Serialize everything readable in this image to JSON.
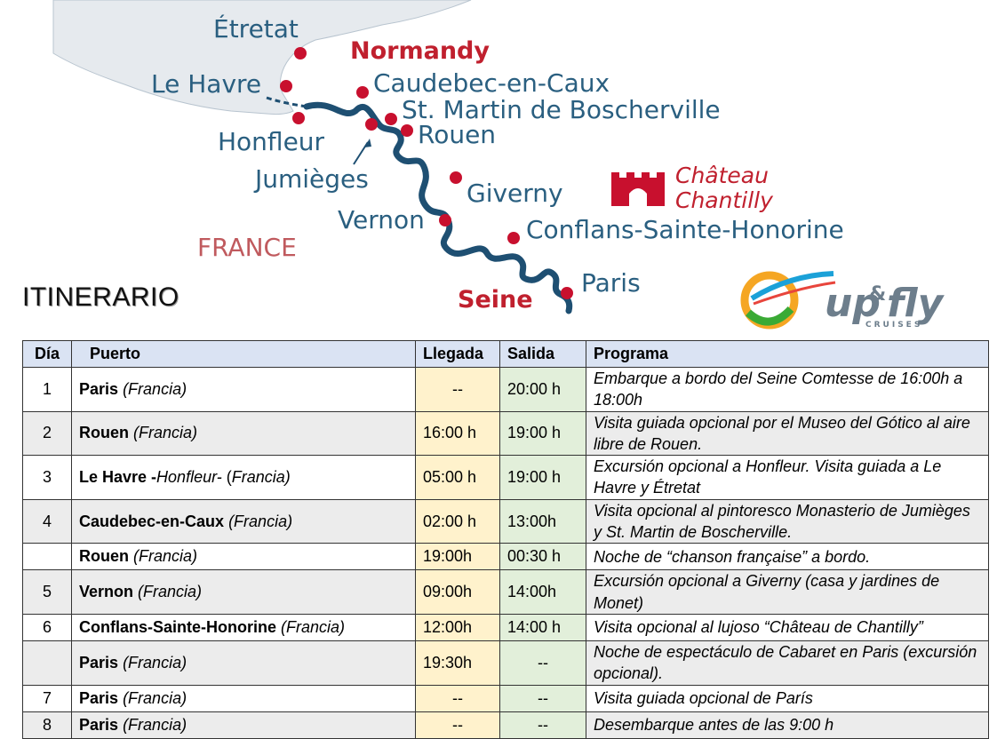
{
  "map": {
    "places": {
      "etretat": "Étretat",
      "le_havre": "Le Havre",
      "honfleur": "Honfleur",
      "caudebec": "Caudebec-en-Caux",
      "st_martin": "St. Martin de Boscherville",
      "rouen": "Rouen",
      "jumieges": "Jumièges",
      "giverny": "Giverny",
      "vernon": "Vernon",
      "conflans": "Conflans-Sainte-Honorine",
      "paris": "Paris"
    },
    "region": "Normandy",
    "country": "FRANCE",
    "river": "Seine",
    "chateau_line1": "Château",
    "chateau_line2": "Chantilly",
    "colors": {
      "river": "#1e4f72",
      "pin": "#c8102e",
      "land": "#e6eaee",
      "label": "#2a5f80"
    }
  },
  "title": "ITINERARIO",
  "logo": {
    "word1": "up",
    "amp": "&",
    "word2": "fly",
    "tagline": "CRUISES"
  },
  "table": {
    "headers": {
      "day": "Día",
      "port": "Puerto",
      "arrival": "Llegada",
      "departure": "Salida",
      "program": "Programa"
    },
    "rows": [
      {
        "day": "1",
        "port": "Paris",
        "country": "(Francia)",
        "arrival": "--",
        "departure": "20:00 h",
        "program": "Embarque a bordo del Seine Comtesse de 16:00h a 18:00h"
      },
      {
        "day": "2",
        "port": "Rouen ",
        "country": "(Francia)",
        "arrival": "16:00 h",
        "departure": "19:00 h",
        "program": "Visita guiada opcional por el Museo del Gótico al aire libre de Rouen."
      },
      {
        "day": "3",
        "port": "Le Havre -",
        "port_extra": "Honfleur-",
        "country_prefix": " (",
        "country": "Francia)",
        "arrival": "05:00 h",
        "departure": "19:00 h",
        "program": "Excursión opcional a Honfleur. Visita guiada a Le Havre y Étretat"
      },
      {
        "day": "4",
        "port": "Caudebec-en-Caux",
        "country": "(Francia)",
        "arrival": "02:00 h",
        "departure": "13:00h",
        "program": "Visita opcional al pintoresco Monasterio de Jumièges y St. Martin de Boscherville."
      },
      {
        "day": "",
        "port": "Rouen",
        "country": "(Francia)",
        "arrival": "19:00h",
        "departure": "00:30 h",
        "program": "Noche de “chanson française” a bordo."
      },
      {
        "day": "5",
        "port": "Vernon",
        "country": "(Francia)",
        "arrival": "09:00h",
        "departure": "14:00h",
        "program": "Excursión opcional a Giverny (casa y jardines de Monet)"
      },
      {
        "day": "6",
        "port": "Conflans-Sainte-Honorine",
        "country": "(Francia)",
        "arrival": "12:00h",
        "departure": "14:00 h",
        "program": "Visita opcional al lujoso “Château de Chantilly”"
      },
      {
        "day": "",
        "port": "Paris",
        "country": "(Francia)",
        "arrival": "19:30h",
        "departure": "--",
        "program": "Noche de espectáculo de Cabaret en Paris (excursión opcional)."
      },
      {
        "day": "7",
        "port": "Paris",
        "country": "(Francia)",
        "arrival": "--",
        "departure": "--",
        "program": "Visita guiada opcional de París"
      },
      {
        "day": "8",
        "port": "Paris",
        "country": "(Francia)",
        "arrival": "--",
        "departure": "--",
        "program": "Desembarque antes de las 9:00 h"
      }
    ]
  }
}
